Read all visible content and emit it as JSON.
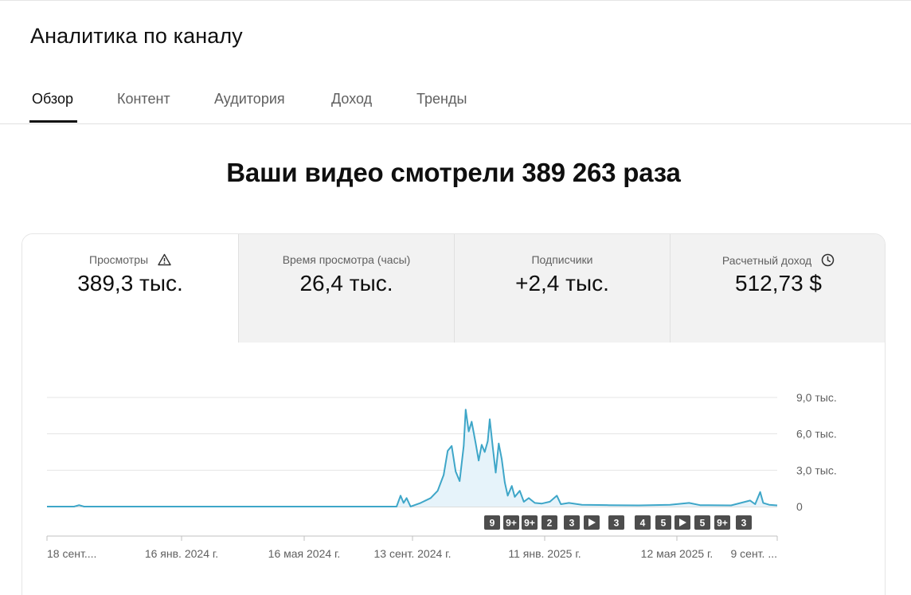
{
  "page": {
    "title": "Аналитика по каналу"
  },
  "tabs": [
    {
      "label": "Обзор",
      "active": true
    },
    {
      "label": "Контент"
    },
    {
      "label": "Аудитория"
    },
    {
      "label": "Доход"
    },
    {
      "label": "Тренды"
    }
  ],
  "headline": "Ваши видео смотрели 389 263 раза",
  "metrics": [
    {
      "label": "Просмотры",
      "value": "389,3 тыс.",
      "icon": "warning-icon",
      "active": true
    },
    {
      "label": "Время просмотра (часы)",
      "value": "26,4 тыс."
    },
    {
      "label": "Подписчики",
      "value": "+2,4 тыс."
    },
    {
      "label": "Расчетный доход",
      "value": "512,73 $",
      "icon": "clock-icon"
    }
  ],
  "colors": {
    "line": "#3ea6c8",
    "area": "#e6f3fa",
    "marker": "#4d4d4d"
  },
  "chart_data": {
    "type": "area",
    "series": [
      {
        "name": "Просмотры",
        "color": "#3ea6c8"
      }
    ],
    "x_range": [
      "2023-09-18",
      "2025-09-16"
    ],
    "ylim": [
      0,
      9000
    ],
    "yticks": [
      "9,0 тыс.",
      "6,0 тыс.",
      "3,0 тыс.",
      "0"
    ],
    "xticks": [
      "18 сент....",
      "16 янв. 2024 г.",
      "16 мая 2024 г.",
      "13 сент. 2024 г.",
      "11 янв. 2025 г.",
      "12 мая 2025 г.",
      "9 сент. ..."
    ],
    "points": [
      [
        "2023-09-18",
        0
      ],
      [
        "2023-10-15",
        0
      ],
      [
        "2023-10-20",
        120
      ],
      [
        "2023-10-25",
        0
      ],
      [
        "2024-09-01",
        0
      ],
      [
        "2024-09-05",
        900
      ],
      [
        "2024-09-08",
        300
      ],
      [
        "2024-09-11",
        700
      ],
      [
        "2024-09-15",
        0
      ],
      [
        "2024-09-25",
        300
      ],
      [
        "2024-10-05",
        700
      ],
      [
        "2024-10-12",
        1300
      ],
      [
        "2024-10-18",
        2600
      ],
      [
        "2024-10-22",
        4600
      ],
      [
        "2024-10-26",
        5000
      ],
      [
        "2024-10-30",
        2900
      ],
      [
        "2024-11-03",
        2100
      ],
      [
        "2024-11-07",
        5000
      ],
      [
        "2024-11-09",
        8000
      ],
      [
        "2024-11-12",
        6200
      ],
      [
        "2024-11-15",
        7000
      ],
      [
        "2024-11-19",
        5200
      ],
      [
        "2024-11-22",
        3800
      ],
      [
        "2024-11-25",
        5100
      ],
      [
        "2024-11-28",
        4500
      ],
      [
        "2024-12-01",
        5400
      ],
      [
        "2024-12-03",
        7200
      ],
      [
        "2024-12-06",
        4900
      ],
      [
        "2024-12-09",
        2800
      ],
      [
        "2024-12-12",
        5200
      ],
      [
        "2024-12-15",
        3900
      ],
      [
        "2024-12-18",
        2000
      ],
      [
        "2024-12-21",
        900
      ],
      [
        "2024-12-25",
        1700
      ],
      [
        "2024-12-28",
        800
      ],
      [
        "2025-01-02",
        1300
      ],
      [
        "2025-01-06",
        400
      ],
      [
        "2025-01-11",
        700
      ],
      [
        "2025-01-17",
        300
      ],
      [
        "2025-01-24",
        250
      ],
      [
        "2025-02-01",
        400
      ],
      [
        "2025-02-08",
        900
      ],
      [
        "2025-02-12",
        200
      ],
      [
        "2025-02-20",
        300
      ],
      [
        "2025-03-05",
        150
      ],
      [
        "2025-04-01",
        120
      ],
      [
        "2025-05-01",
        100
      ],
      [
        "2025-06-01",
        150
      ],
      [
        "2025-06-20",
        300
      ],
      [
        "2025-07-01",
        120
      ],
      [
        "2025-08-01",
        100
      ],
      [
        "2025-08-20",
        500
      ],
      [
        "2025-08-25",
        200
      ],
      [
        "2025-08-30",
        1200
      ],
      [
        "2025-09-02",
        300
      ],
      [
        "2025-09-08",
        150
      ],
      [
        "2025-09-16",
        100
      ]
    ],
    "event_markers": [
      {
        "label": "9"
      },
      {
        "label": "9+"
      },
      {
        "label": "9+"
      },
      {
        "label": "2"
      },
      {
        "label": "3"
      },
      {
        "label": "▶"
      },
      {
        "label": "3"
      },
      {
        "label": "4"
      },
      {
        "label": "5"
      },
      {
        "label": "▶"
      },
      {
        "label": "5"
      },
      {
        "label": "9+"
      },
      {
        "label": "3"
      }
    ]
  }
}
